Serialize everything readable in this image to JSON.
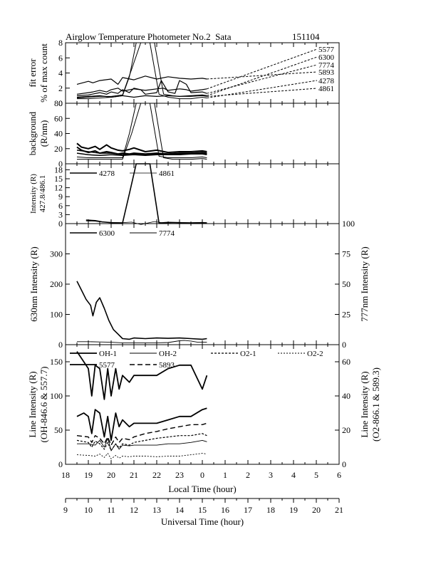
{
  "header": {
    "title": "Airglow Temperature Photometer No.2  Sata",
    "date": "151104"
  },
  "chart_data": [
    {
      "type": "line",
      "ylabel_lines": [
        "fit error",
        "% of max count"
      ],
      "ylim": [
        0,
        8
      ],
      "yticks": [
        "0",
        "2",
        "4",
        "6",
        "8"
      ],
      "legend": [
        "5577",
        "6300",
        "7774",
        "5893",
        "4278",
        "4861"
      ],
      "series": [
        {
          "name": "5577",
          "x": [
            18.5,
            19,
            19.2,
            19.5,
            19.8,
            20,
            20.3,
            20.5,
            21,
            21.5,
            22,
            22.3,
            22.5,
            23,
            23.3,
            23.5,
            24,
            24.2
          ],
          "y": [
            1.2,
            1.4,
            1.5,
            1.7,
            1.5,
            1.8,
            2.0,
            1.6,
            1.9,
            1.7,
            1.9,
            2.0,
            1.7,
            1.9,
            1.8,
            1.6,
            1.8,
            1.9
          ]
        },
        {
          "name": "6300",
          "x": [
            18.5,
            19,
            19.5,
            20,
            20.5,
            21,
            21.5,
            22,
            22.5,
            23,
            23.5,
            24,
            24.2
          ],
          "y": [
            0.8,
            0.9,
            1.0,
            0.8,
            1.0,
            0.8,
            1.0,
            0.9,
            1.0,
            0.9,
            1.0,
            1.1,
            1.0
          ]
        },
        {
          "name": "7774",
          "x": [
            18.5,
            19,
            19.5,
            19.8,
            20,
            20.3,
            20.5,
            20.8,
            21,
            21.3,
            21.5,
            22,
            22.2,
            22.5,
            22.8,
            23,
            23.3,
            23.5,
            24,
            24.2
          ],
          "y": [
            1.0,
            1.1,
            1.4,
            1.2,
            1.5,
            1.3,
            1.8,
            1.4,
            2.0,
            1.8,
            1.2,
            1.4,
            3.0,
            1.5,
            1.3,
            3.0,
            2.5,
            1.4,
            1.5,
            1.3
          ]
        },
        {
          "name": "5893",
          "x": [
            18.5,
            19,
            19.2,
            19.5,
            20,
            20.3,
            20.5,
            21,
            21.5,
            22,
            22.5,
            23,
            23.5,
            24,
            24.2
          ],
          "y": [
            2.5,
            2.9,
            2.7,
            3.0,
            3.2,
            2.5,
            3.4,
            3.1,
            3.6,
            3.2,
            3.5,
            3.3,
            3.2,
            3.3,
            3.2
          ]
        },
        {
          "name": "4278",
          "x": [
            18.5,
            19,
            19.5,
            20,
            20.5,
            20.8,
            21.1,
            21.7,
            22.1,
            22.5,
            23,
            23.5,
            24,
            24.2
          ],
          "y": [
            0.6,
            0.6,
            0.7,
            0.8,
            1.0,
            3.5,
            8.0,
            8.0,
            1.2,
            0.8,
            0.6,
            0.6,
            0.8,
            0.7
          ]
        },
        {
          "name": "4861",
          "x": [
            18.5,
            19,
            19.5,
            20,
            20.5,
            20.9,
            21.3,
            21.9,
            22.3,
            22.7,
            23,
            23.5,
            24,
            24.2
          ],
          "y": [
            0.7,
            0.8,
            0.9,
            0.9,
            1.1,
            4.5,
            8.0,
            8.0,
            1.2,
            1.0,
            0.9,
            0.9,
            1.0,
            0.9
          ]
        }
      ]
    },
    {
      "type": "line",
      "ylabel_lines": [
        "background",
        "(R/nm)"
      ],
      "ylim": [
        0,
        80
      ],
      "yticks": [
        "0",
        "20",
        "40",
        "60",
        "80"
      ],
      "series": [
        {
          "name": "",
          "x": [
            18.5,
            18.7,
            19,
            19.3,
            19.5,
            19.8,
            20,
            20.3,
            20.5,
            20.8,
            21,
            21.5,
            22,
            22.5,
            23,
            23.5,
            24,
            24.2
          ],
          "y": [
            27,
            22,
            20,
            23,
            19,
            25,
            21,
            18,
            17,
            19,
            21,
            16,
            18,
            15,
            16,
            16,
            17,
            16
          ]
        },
        {
          "name": "",
          "x": [
            18.5,
            18.7,
            19,
            19.3,
            19.5,
            19.8,
            20,
            20.3,
            20.5,
            20.8,
            21,
            21.5,
            22,
            22.5,
            23,
            23.5,
            24,
            24.2
          ],
          "y": [
            22,
            18,
            15,
            17,
            14,
            16,
            15,
            13,
            14,
            13,
            14,
            13,
            14,
            13,
            14,
            14,
            15,
            14
          ]
        },
        {
          "name": "",
          "x": [
            18.5,
            19,
            19.5,
            20,
            20.5,
            21,
            21.5,
            22,
            22.5,
            23,
            23.5,
            24,
            24.2
          ],
          "y": [
            18,
            16,
            14,
            14,
            12,
            13,
            12,
            13,
            12,
            13,
            13,
            14,
            13
          ]
        },
        {
          "name": "",
          "x": [
            18.5,
            19,
            19.5,
            20,
            20.5,
            21,
            21.5,
            22,
            22.5,
            23,
            23.5,
            24,
            24.2
          ],
          "y": [
            14,
            12,
            11,
            12,
            11,
            12,
            11,
            12,
            12,
            12,
            13,
            13,
            12
          ]
        },
        {
          "name": "",
          "x": [
            18.5,
            19,
            19.5,
            20,
            20.5,
            20.8,
            21.1,
            21.7,
            22.1,
            22.5,
            23,
            23.5,
            24,
            24.2
          ],
          "y": [
            9,
            8,
            8,
            8,
            8,
            40,
            80,
            80,
            10,
            8,
            8,
            8,
            9,
            8
          ]
        },
        {
          "name": "",
          "x": [
            18.5,
            19,
            19.5,
            20,
            20.5,
            20.9,
            21.3,
            21.9,
            22.3,
            22.7,
            23,
            23.5,
            24,
            24.2
          ],
          "y": [
            6,
            6,
            6,
            6,
            6,
            40,
            80,
            80,
            8,
            6,
            6,
            6,
            7,
            6
          ]
        }
      ]
    },
    {
      "type": "line",
      "ylabel_lines": [
        "Intensity (R)",
        "427.8/486.1"
      ],
      "ylim": [
        0,
        20
      ],
      "yticks": [
        "0",
        "3",
        "6",
        "9",
        "12",
        "15",
        "18"
      ],
      "legend": [
        "4278",
        "4861"
      ],
      "series": [
        {
          "name": "4278",
          "x": [
            18.9,
            19.3,
            19.6,
            20,
            20.5,
            20.8,
            21.1,
            21.7,
            22.1,
            22.5,
            23,
            23.5,
            24,
            24.2
          ],
          "y": [
            1.2,
            1.0,
            0.6,
            0.3,
            0.2,
            10,
            20,
            20,
            0.2,
            0.4,
            0.3,
            0.2,
            0.3,
            0.2
          ]
        },
        {
          "name": "4861",
          "x": [
            18.9,
            19.3,
            19.6,
            20,
            20.5,
            20.9,
            21.3,
            21.9,
            22.3,
            22.7,
            23,
            23.5,
            24,
            24.2
          ],
          "y": [
            0.9,
            0.8,
            0.5,
            0.4,
            0.3,
            0.5,
            -0.3,
            0.7,
            0.2,
            0.3,
            0.4,
            0.3,
            0.4,
            0.3
          ]
        }
      ]
    },
    {
      "type": "line",
      "ylabel": "630nm Intensity (R)",
      "ylabel_right": "777nm Intensity (R)",
      "ylim": [
        0,
        400
      ],
      "ylim_right": [
        0,
        100
      ],
      "yticks": [
        "0",
        "100",
        "200",
        "300"
      ],
      "yticks_right": [
        "0",
        "25",
        "50",
        "75",
        "100"
      ],
      "legend": [
        "6300",
        "7774"
      ],
      "series": [
        {
          "name": "6300",
          "x": [
            18.5,
            18.7,
            18.9,
            19.1,
            19.2,
            19.35,
            19.5,
            19.7,
            19.9,
            20.1,
            20.3,
            20.5,
            20.8,
            21,
            21.5,
            22,
            22.5,
            23,
            23.5,
            24,
            24.2
          ],
          "y": [
            210,
            180,
            150,
            130,
            95,
            140,
            155,
            120,
            80,
            50,
            35,
            20,
            18,
            22,
            20,
            22,
            21,
            22,
            20,
            18,
            20
          ]
        },
        {
          "name": "7774",
          "x": [
            18.5,
            19,
            19.5,
            20,
            20.5,
            21,
            21.5,
            22,
            22.5,
            23,
            23.2,
            23.5,
            23.8,
            24,
            24.2
          ],
          "y": [
            10,
            10,
            9,
            8,
            6,
            6,
            6,
            6,
            7,
            13,
            14,
            12,
            8,
            8,
            8
          ]
        }
      ]
    },
    {
      "type": "line",
      "ylabel_lines": [
        "Line Intensity (R)",
        "(OH-846.6 & 557.7)"
      ],
      "ylabel_right_lines": [
        "Line Intensity (R)",
        "(O2-866.1 & 589.3)"
      ],
      "ylim": [
        0,
        175
      ],
      "ylim_right": [
        0,
        70
      ],
      "yticks": [
        "0",
        "50",
        "100",
        "150"
      ],
      "yticks_right": [
        "0",
        "20",
        "40",
        "60"
      ],
      "legend": [
        "OH-1",
        "OH-2",
        "O2-1",
        "O2-2",
        "5577",
        "5893"
      ],
      "series": [
        {
          "name": "OH-1",
          "x": [
            18.5,
            18.8,
            19,
            19.15,
            19.3,
            19.5,
            19.7,
            19.85,
            20,
            20.2,
            20.35,
            20.5,
            20.8,
            21,
            21.5,
            22,
            22.5,
            23,
            23.5,
            24,
            24.2
          ],
          "y": [
            70,
            75,
            70,
            45,
            80,
            75,
            40,
            70,
            35,
            75,
            55,
            65,
            55,
            60,
            60,
            60,
            65,
            70,
            70,
            80,
            82
          ]
        },
        {
          "name": "OH-2",
          "x": [
            18.5,
            19,
            19.3,
            19.5,
            19.7,
            19.85,
            20,
            20.2,
            20.35,
            20.5,
            20.8,
            21,
            21.5,
            22,
            22.5,
            23,
            23.5,
            24,
            24.2
          ],
          "y": [
            30,
            30,
            28,
            35,
            25,
            38,
            20,
            30,
            22,
            28,
            27,
            28,
            28,
            28,
            30,
            30,
            32,
            35,
            33
          ]
        },
        {
          "name": "O2-1",
          "x": [
            18.5,
            19,
            19.15,
            19.3,
            19.5,
            19.7,
            19.85,
            20,
            20.2,
            20.35,
            20.5,
            20.8,
            21,
            21.5,
            22,
            22.5,
            23,
            23.5,
            24,
            24.2
          ],
          "y": [
            35,
            32,
            25,
            34,
            30,
            22,
            32,
            20,
            30,
            24,
            30,
            28,
            32,
            35,
            38,
            40,
            42,
            42,
            45,
            42
          ]
        },
        {
          "name": "O2-2",
          "x": [
            18.5,
            19,
            19.3,
            19.5,
            19.7,
            19.85,
            20,
            20.2,
            20.35,
            20.5,
            20.8,
            21,
            21.5,
            22,
            22.5,
            23,
            23.5,
            24,
            24.2
          ],
          "y": [
            14,
            13,
            12,
            15,
            10,
            16,
            8,
            13,
            9,
            12,
            11,
            12,
            12,
            11,
            12,
            12,
            14,
            16,
            15
          ]
        },
        {
          "name": "5577",
          "x": [
            18.5,
            18.8,
            19,
            19.15,
            19.3,
            19.5,
            19.7,
            19.85,
            20,
            20.2,
            20.35,
            20.5,
            20.8,
            21,
            21.5,
            22,
            22.5,
            23,
            23.5,
            24,
            24.2
          ],
          "y": [
            165,
            150,
            140,
            100,
            145,
            140,
            95,
            140,
            100,
            140,
            110,
            130,
            120,
            130,
            130,
            130,
            140,
            145,
            145,
            110,
            130
          ]
        },
        {
          "name": "5893",
          "x": [
            18.5,
            19,
            19.15,
            19.3,
            19.5,
            19.7,
            19.85,
            20,
            20.2,
            20.35,
            20.5,
            20.8,
            21,
            21.5,
            22,
            22.5,
            23,
            23.5,
            24,
            24.2
          ],
          "y": [
            42,
            40,
            32,
            42,
            38,
            30,
            40,
            28,
            40,
            32,
            38,
            36,
            40,
            45,
            48,
            52,
            55,
            58,
            58,
            60
          ]
        }
      ]
    }
  ],
  "xaxis_local": {
    "label": "Local Time (hour)",
    "ticks": [
      "18",
      "19",
      "20",
      "21",
      "22",
      "23",
      "0",
      "1",
      "2",
      "3",
      "4",
      "5",
      "6"
    ]
  },
  "xaxis_ut": {
    "label": "Universal Time (hour)",
    "ticks": [
      "9",
      "10",
      "11",
      "12",
      "13",
      "14",
      "15",
      "16",
      "17",
      "18",
      "19",
      "20",
      "21"
    ]
  }
}
